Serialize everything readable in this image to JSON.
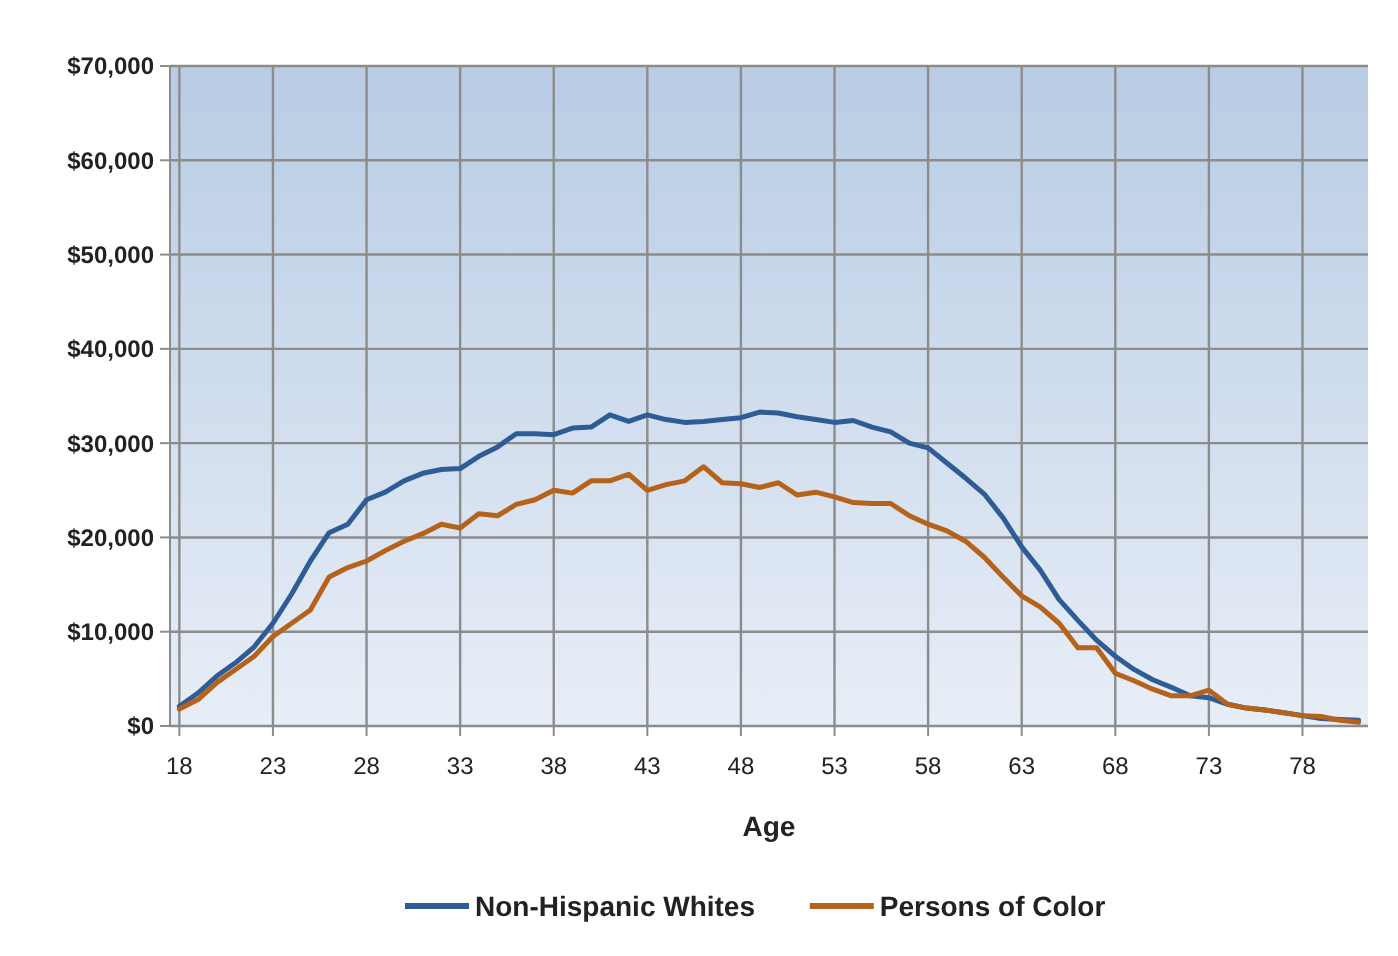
{
  "chart_data": {
    "type": "line",
    "xlabel": "Age",
    "x": [
      18,
      19,
      20,
      21,
      22,
      23,
      24,
      25,
      26,
      27,
      28,
      29,
      30,
      31,
      32,
      33,
      34,
      35,
      36,
      37,
      38,
      39,
      40,
      41,
      42,
      43,
      44,
      45,
      46,
      47,
      48,
      49,
      50,
      51,
      52,
      53,
      54,
      55,
      56,
      57,
      58,
      59,
      60,
      61,
      62,
      63,
      64,
      65,
      66,
      67,
      68,
      69,
      70,
      71,
      72,
      73,
      74,
      75,
      76,
      77,
      78,
      79,
      80,
      81
    ],
    "series": [
      {
        "name": "Non-Hispanic Whites",
        "color": "#2e5c96",
        "values": [
          2100,
          3500,
          5300,
          6700,
          8400,
          10900,
          14000,
          17500,
          20500,
          21400,
          24000,
          24800,
          26000,
          26800,
          27200,
          27300,
          28600,
          29600,
          31000,
          31000,
          30900,
          31600,
          31700,
          33000,
          32300,
          33000,
          32500,
          32200,
          32300,
          32500,
          32700,
          33300,
          33200,
          32800,
          32500,
          32200,
          32400,
          31700,
          31200,
          30000,
          29500,
          27900,
          26300,
          24600,
          22100,
          19000,
          16500,
          13400,
          11200,
          9100,
          7400,
          6000,
          4900,
          4100,
          3200,
          3000,
          2300,
          1900,
          1700,
          1400,
          1100,
          800,
          700,
          600
        ]
      },
      {
        "name": "Persons of Color",
        "color": "#b5621b",
        "values": [
          1800,
          2800,
          4600,
          6000,
          7400,
          9500,
          10900,
          12300,
          15800,
          16800,
          17500,
          18600,
          19600,
          20400,
          21400,
          21000,
          22500,
          22300,
          23500,
          24000,
          25000,
          24700,
          26000,
          26000,
          26700,
          25000,
          25600,
          26000,
          27500,
          25800,
          25700,
          25300,
          25800,
          24500,
          24800,
          24300,
          23700,
          23600,
          23600,
          22300,
          21400,
          20700,
          19600,
          17900,
          15800,
          13800,
          12600,
          10900,
          8300,
          8300,
          5600,
          4800,
          3900,
          3200,
          3200,
          3800,
          2300,
          1900,
          1700,
          1400,
          1100,
          1000,
          600,
          400
        ]
      }
    ],
    "xlim": [
      17.5,
      81.5
    ],
    "xticks": [
      18,
      23,
      28,
      33,
      38,
      43,
      48,
      53,
      58,
      63,
      68,
      73,
      78
    ],
    "ylim": [
      0,
      70000
    ],
    "yticks": [
      {
        "value": 0,
        "label": "$0"
      },
      {
        "value": 10000,
        "label": "$10,000"
      },
      {
        "value": 20000,
        "label": "$20,000"
      },
      {
        "value": 30000,
        "label": "$30,000"
      },
      {
        "value": 40000,
        "label": "$40,000"
      },
      {
        "value": 50000,
        "label": "$50,000"
      },
      {
        "value": 60000,
        "label": "$60,000"
      },
      {
        "value": 70000,
        "label": "$70,000"
      }
    ],
    "grid": true,
    "legend": "bottom",
    "marker": "none",
    "line_style": "solid"
  }
}
